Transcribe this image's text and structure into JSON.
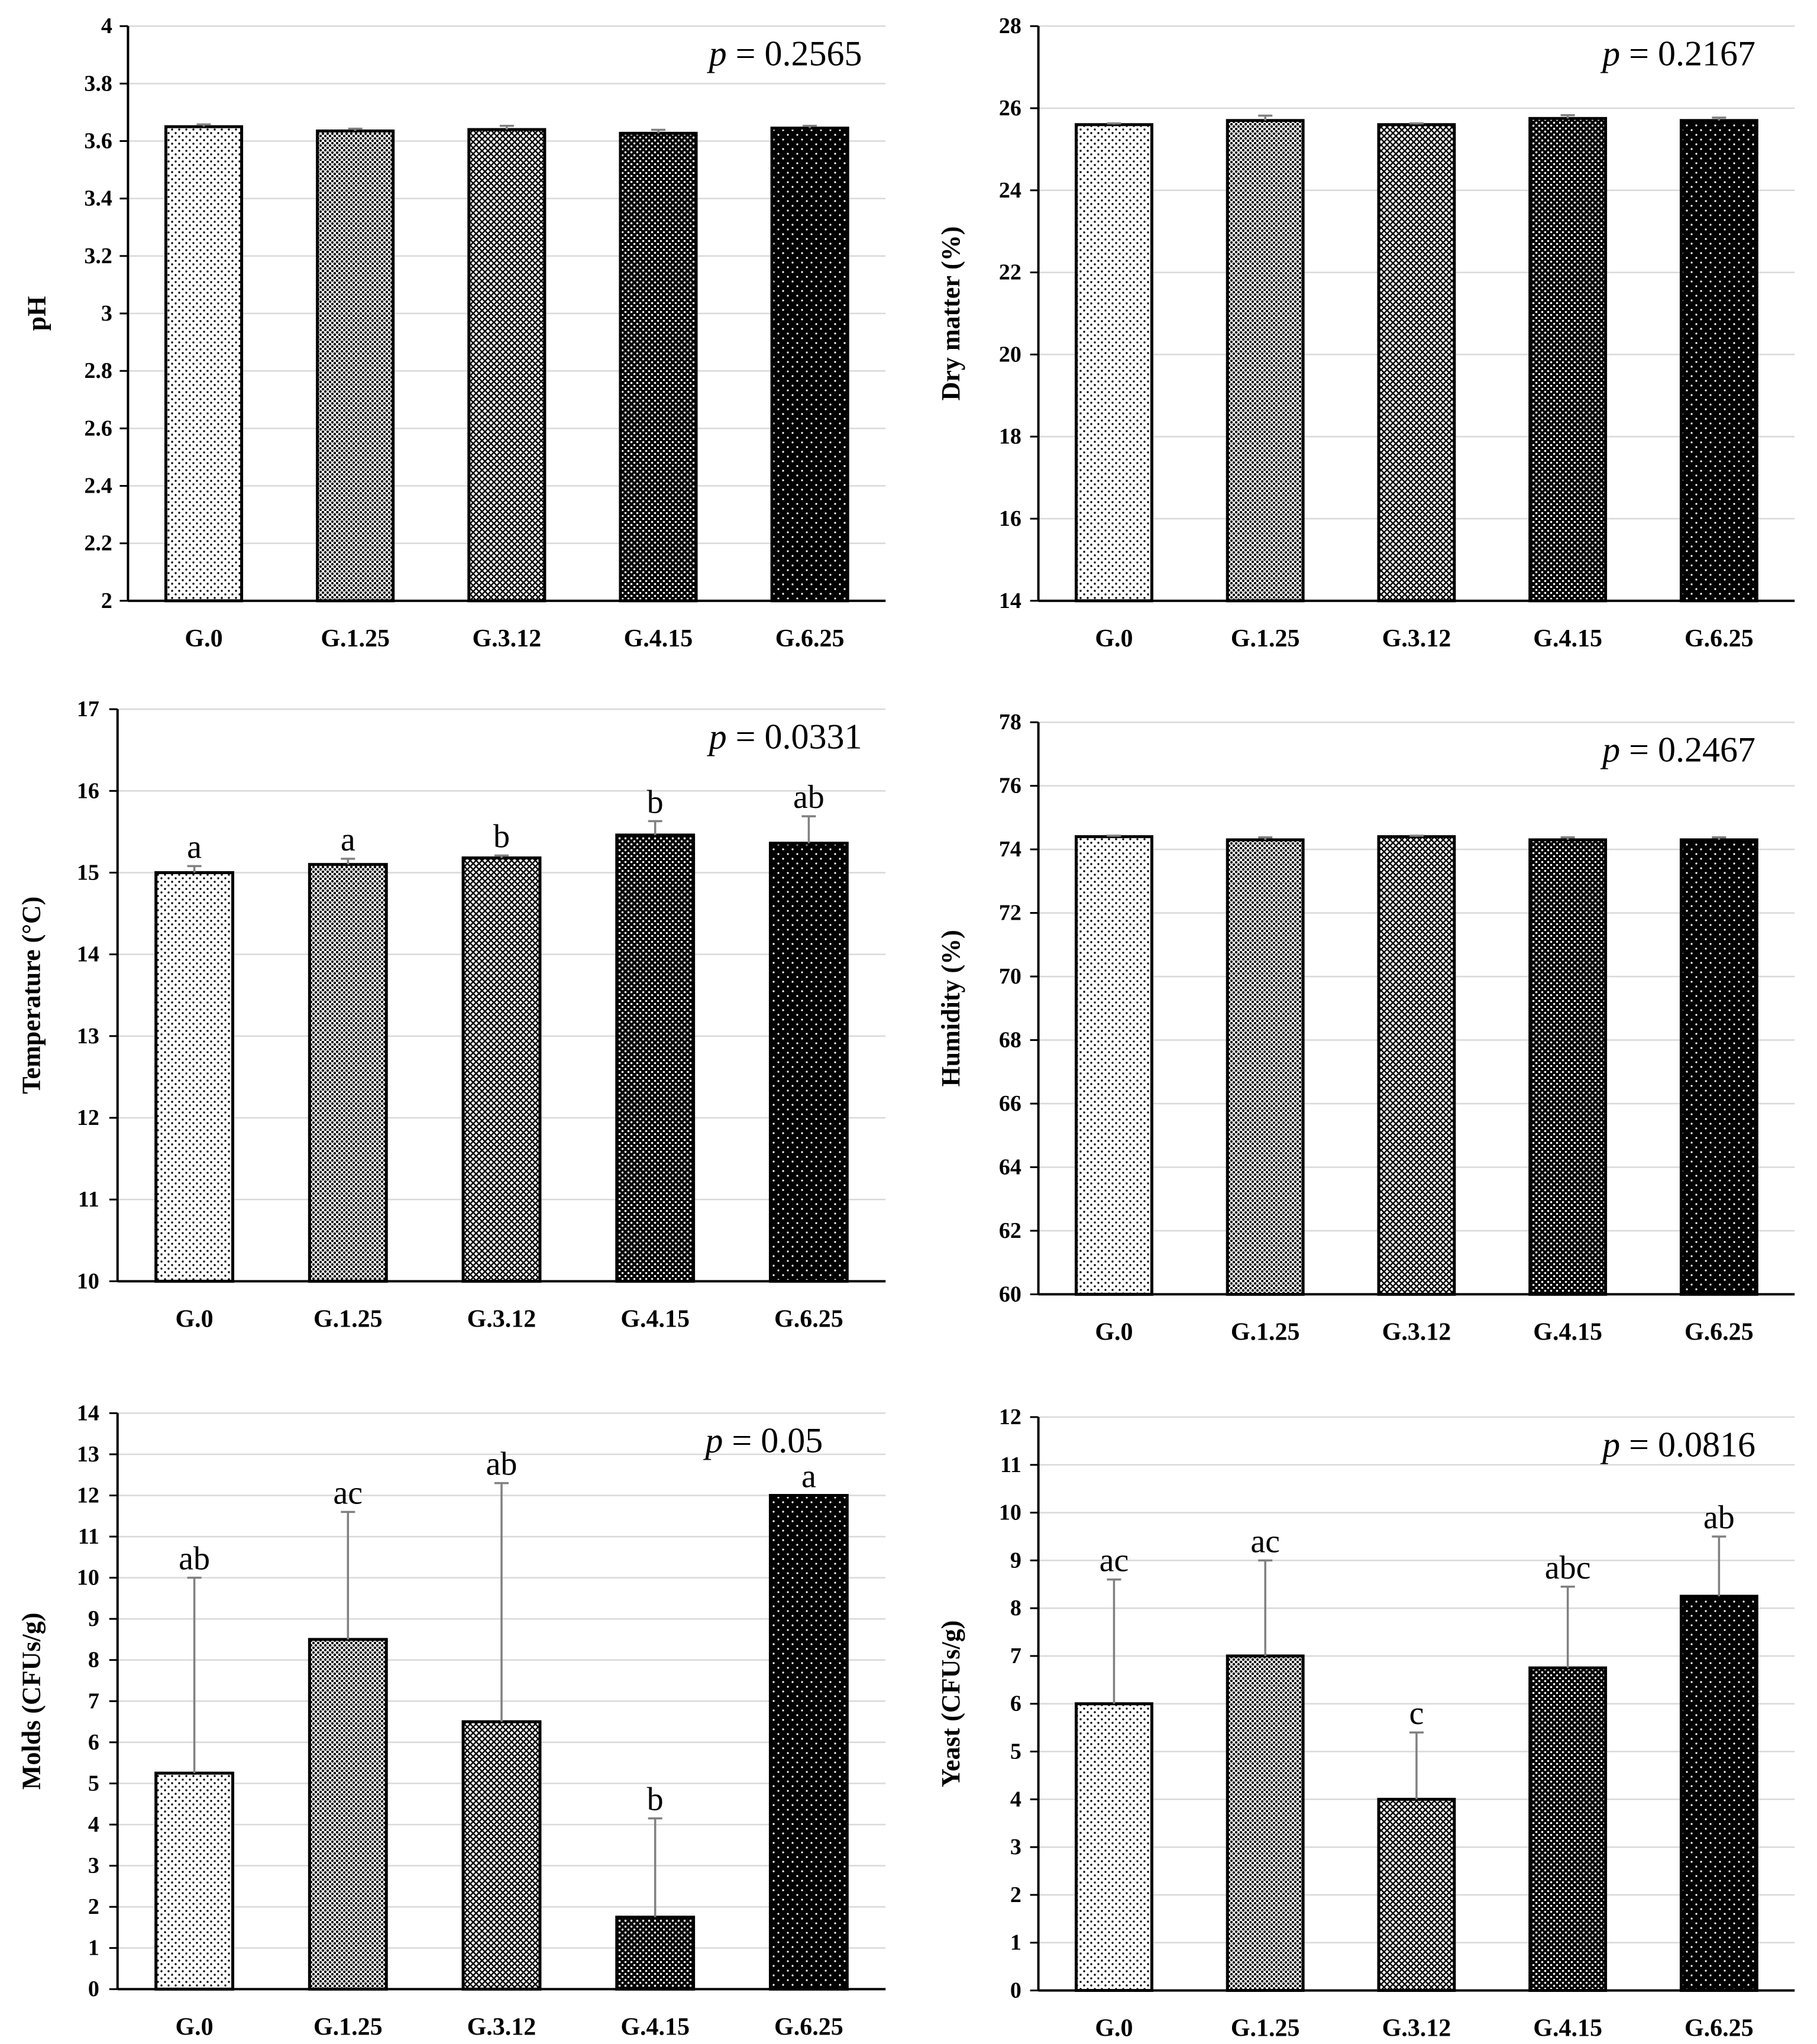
{
  "chart_data": [
    {
      "type": "bar",
      "title": "",
      "xlabel": "",
      "ylabel": "pH",
      "categories": [
        "G.0",
        "G.1.25",
        "G.3.12",
        "G.4.15",
        "G.6.25"
      ],
      "values": [
        3.65,
        3.635,
        3.64,
        3.627,
        3.645
      ],
      "errors": [
        0.008,
        0.008,
        0.013,
        0.012,
        0.008
      ],
      "letters": [
        "",
        "",
        "",
        "",
        ""
      ],
      "ylim": [
        2,
        4
      ],
      "yticks": [
        "2",
        "2.2",
        "2.4",
        "2.6",
        "2.8",
        "3",
        "3.2",
        "3.4",
        "3.6",
        "3.8",
        "4"
      ],
      "p_label": "p",
      "p_value": " = 0.2565",
      "grid": true
    },
    {
      "type": "bar",
      "title": "",
      "xlabel": "",
      "ylabel": "Dry matter (%)",
      "categories": [
        "G.0",
        "G.1.25",
        "G.3.12",
        "G.4.15",
        "G.6.25"
      ],
      "values": [
        25.6,
        25.7,
        25.6,
        25.75,
        25.7
      ],
      "errors": [
        0.03,
        0.12,
        0.03,
        0.08,
        0.07
      ],
      "letters": [
        "",
        "",
        "",
        "",
        ""
      ],
      "ylim": [
        14,
        28
      ],
      "yticks": [
        "14",
        "16",
        "18",
        "20",
        "22",
        "24",
        "26",
        "28"
      ],
      "p_label": "p",
      "p_value": " = 0.2167",
      "grid": true
    },
    {
      "type": "bar",
      "title": "",
      "xlabel": "",
      "ylabel": "Temperature (°C)",
      "categories": [
        "G.0",
        "G.1.25",
        "G.3.12",
        "G.4.15",
        "G.6.25"
      ],
      "values": [
        15.0,
        15.1,
        15.18,
        15.46,
        15.36
      ],
      "errors": [
        0.08,
        0.07,
        0.03,
        0.17,
        0.33
      ],
      "letters": [
        "a",
        "a",
        "b",
        "b",
        "ab"
      ],
      "ylim": [
        10,
        17
      ],
      "yticks": [
        "10",
        "11",
        "12",
        "13",
        "14",
        "15",
        "16",
        "17"
      ],
      "p_label": "p",
      "p_value": " = 0.0331",
      "grid": true
    },
    {
      "type": "bar",
      "title": "",
      "xlabel": "",
      "ylabel": "Humidity (%)",
      "categories": [
        "G.0",
        "G.1.25",
        "G.3.12",
        "G.4.15",
        "G.6.25"
      ],
      "values": [
        74.4,
        74.3,
        74.4,
        74.3,
        74.3
      ],
      "errors": [
        0.03,
        0.08,
        0.03,
        0.08,
        0.08
      ],
      "letters": [
        "",
        "",
        "",
        "",
        ""
      ],
      "ylim": [
        60,
        78
      ],
      "yticks": [
        "60",
        "62",
        "64",
        "66",
        "68",
        "70",
        "72",
        "74",
        "76",
        "78"
      ],
      "p_label": "p",
      "p_value": " = 0.2467",
      "grid": true
    },
    {
      "type": "bar",
      "title": "",
      "xlabel": "",
      "ylabel": "Molds (CFUs/g)",
      "categories": [
        "G.0",
        "G.1.25",
        "G.3.12",
        "G.4.15",
        "G.6.25"
      ],
      "values": [
        5.25,
        8.5,
        6.5,
        1.75,
        12.0
      ],
      "errors": [
        4.75,
        3.1,
        5.8,
        2.4,
        0.0
      ],
      "letters": [
        "ab",
        "ac",
        "ab",
        "b",
        "a"
      ],
      "ylim": [
        0,
        14
      ],
      "yticks": [
        "0",
        "1",
        "2",
        "3",
        "4",
        "5",
        "6",
        "7",
        "8",
        "9",
        "10",
        "11",
        "12",
        "13",
        "14"
      ],
      "p_label": "p",
      "p_value": " = 0.05",
      "grid": true
    },
    {
      "type": "bar",
      "title": "",
      "xlabel": "",
      "ylabel": "Yeast (CFUs/g)",
      "categories": [
        "G.0",
        "G.1.25",
        "G.3.12",
        "G.4.15",
        "G.6.25"
      ],
      "values": [
        6.0,
        7.0,
        4.0,
        6.75,
        8.25
      ],
      "errors": [
        2.6,
        2.0,
        1.4,
        1.7,
        1.25
      ],
      "letters": [
        "ac",
        "ac",
        "c",
        "abc",
        "ab"
      ],
      "ylim": [
        0,
        12
      ],
      "yticks": [
        "0",
        "1",
        "2",
        "3",
        "4",
        "5",
        "6",
        "7",
        "8",
        "9",
        "10",
        "11",
        "12"
      ],
      "p_label": "p",
      "p_value": " = 0.0816",
      "grid": true
    }
  ]
}
